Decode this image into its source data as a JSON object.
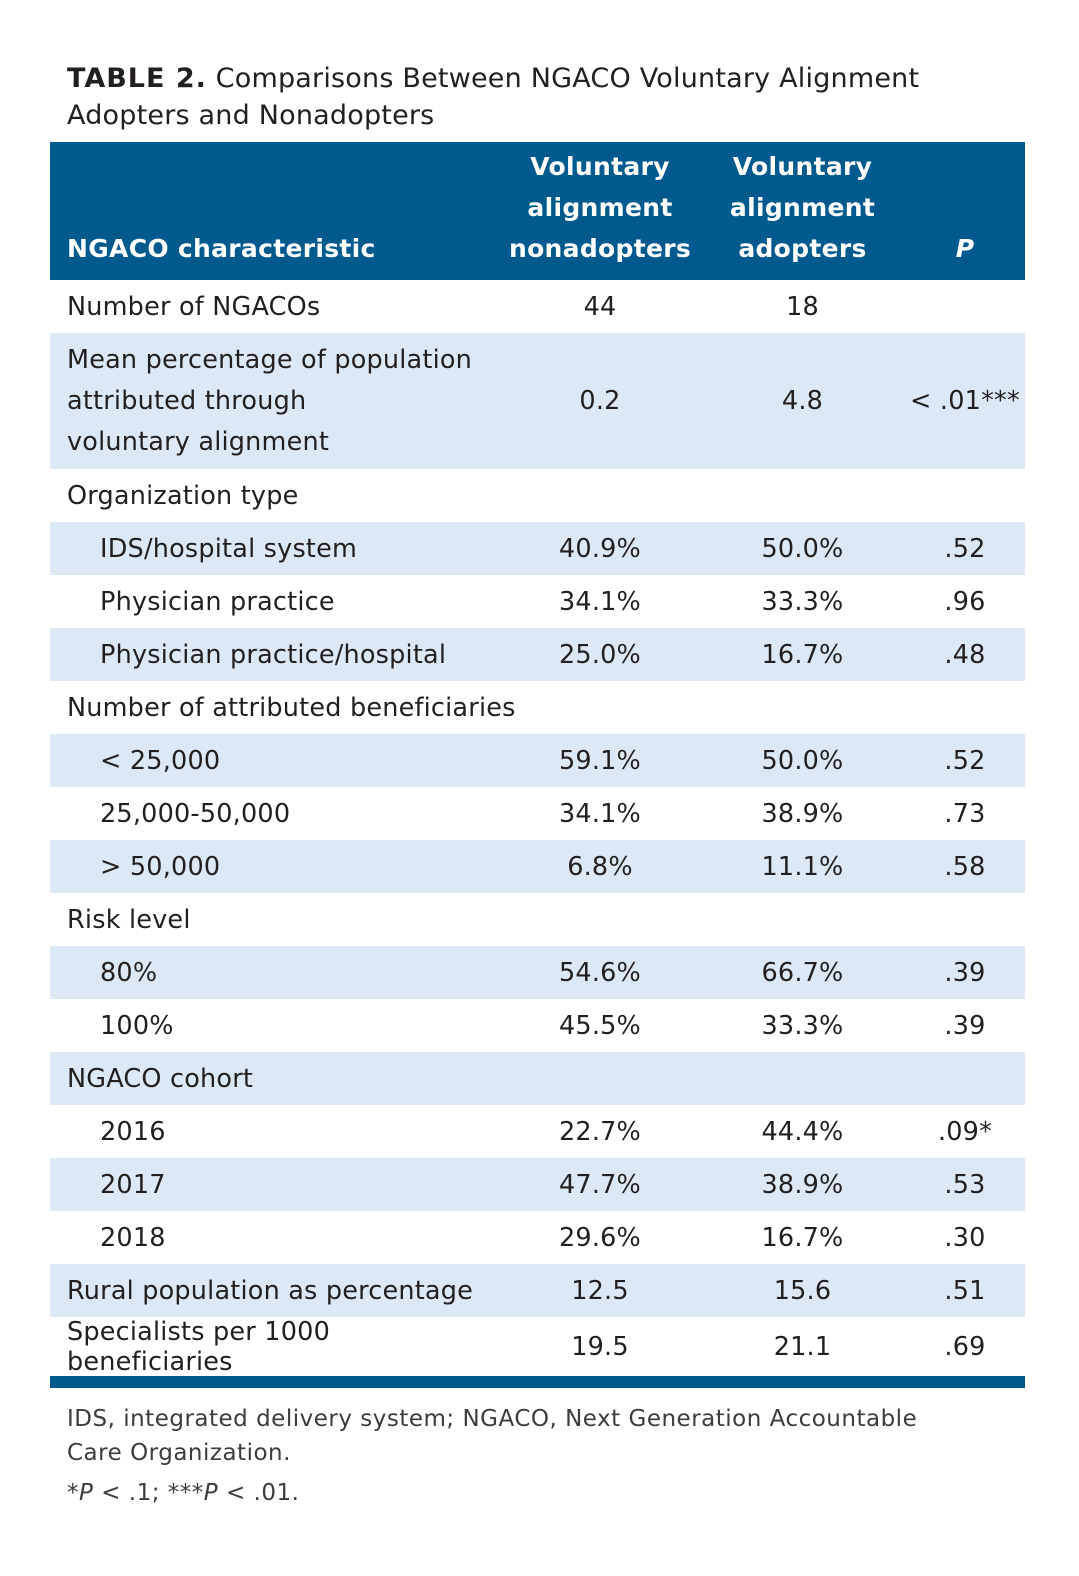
{
  "caption": {
    "label": "TABLE 2.",
    "text": " Comparisons Between NGACO Voluntary Alignment Adopters and Nonadopters"
  },
  "headers": {
    "characteristic": "NGACO characteristic",
    "nonadopters": [
      "Voluntary",
      "alignment",
      "nonadopters"
    ],
    "adopters": [
      "Voluntary",
      "alignment",
      "adopters"
    ],
    "p": "P"
  },
  "rows": [
    {
      "label": "Number of NGACOs",
      "non": "44",
      "adopt": "18",
      "p": ""
    },
    {
      "label_lines": [
        "Mean percentage of population",
        "attributed through",
        "voluntary alignment"
      ],
      "non": "0.2",
      "adopt": "4.8",
      "p": "< .01***"
    },
    {
      "label": "Organization type"
    },
    {
      "label": "IDS/hospital system",
      "non": "40.9%",
      "adopt": "50.0%",
      "p": ".52"
    },
    {
      "label": "Physician practice",
      "non": "34.1%",
      "adopt": "33.3%",
      "p": ".96"
    },
    {
      "label": "Physician practice/hospital",
      "non": "25.0%",
      "adopt": "16.7%",
      "p": ".48"
    },
    {
      "label": "Number of attributed beneficiaries"
    },
    {
      "label": "< 25,000",
      "non": "59.1%",
      "adopt": "50.0%",
      "p": ".52"
    },
    {
      "label": "25,000-50,000",
      "non": "34.1%",
      "adopt": "38.9%",
      "p": ".73"
    },
    {
      "label": "> 50,000",
      "non": "6.8%",
      "adopt": "11.1%",
      "p": ".58"
    },
    {
      "label": "Risk level"
    },
    {
      "label": "80%",
      "non": "54.6%",
      "adopt": "66.7%",
      "p": ".39"
    },
    {
      "label": "100%",
      "non": "45.5%",
      "adopt": "33.3%",
      "p": ".39"
    },
    {
      "label": "NGACO cohort"
    },
    {
      "label": "2016",
      "non": "22.7%",
      "adopt": "44.4%",
      "p": ".09*"
    },
    {
      "label": "2017",
      "non": "47.7%",
      "adopt": "38.9%",
      "p": ".53"
    },
    {
      "label": "2018",
      "non": "29.6%",
      "adopt": "16.7%",
      "p": ".30"
    },
    {
      "label": "Rural population as percentage",
      "non": "12.5",
      "adopt": "15.6",
      "p": ".51"
    },
    {
      "label": "Specialists per 1000 beneficiaries",
      "non": "19.5",
      "adopt": "21.1",
      "p": ".69"
    }
  ],
  "footnotes": {
    "abbrev_lines": [
      "IDS, integrated delivery system; NGACO, Next Generation Accountable",
      "Care Organization."
    ],
    "sig": {
      "s1": "*",
      "p1": "P",
      "r1": " < .1; ***",
      "p2": "P",
      "r2": " < .01."
    }
  },
  "colors": {
    "header_bg": "#005a8e",
    "shade_bg": "#dce8f5"
  }
}
